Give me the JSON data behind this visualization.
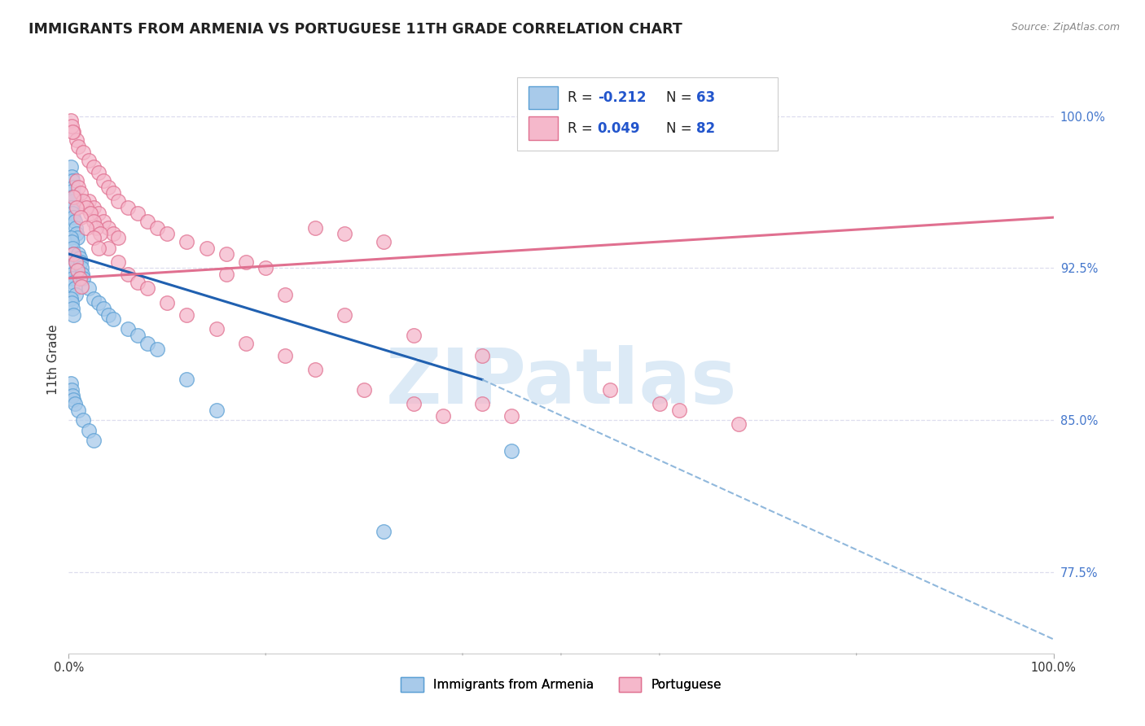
{
  "title": "IMMIGRANTS FROM ARMENIA VS PORTUGUESE 11TH GRADE CORRELATION CHART",
  "source": "Source: ZipAtlas.com",
  "ylabel": "11th Grade",
  "right_ytick_labels": [
    "77.5%",
    "85.0%",
    "92.5%",
    "100.0%"
  ],
  "right_ytick_values": [
    0.775,
    0.85,
    0.925,
    1.0
  ],
  "xlim": [
    0.0,
    1.0
  ],
  "ylim": [
    0.735,
    1.025
  ],
  "color_blue_fill": "#A8CAEA",
  "color_blue_edge": "#5A9FD4",
  "color_blue_line": "#2060B0",
  "color_pink_fill": "#F5B8CB",
  "color_pink_edge": "#E07090",
  "color_pink_line": "#E07090",
  "color_dashed": "#90B8DC",
  "grid_color": "#DDDDEE",
  "background_color": "#FFFFFF",
  "scatter_size": 160,
  "title_fontsize": 12.5,
  "source_fontsize": 9,
  "blue_line": [
    0.0,
    0.932,
    0.42,
    0.87
  ],
  "blue_dashed": [
    0.42,
    0.87,
    1.0,
    0.742
  ],
  "pink_line": [
    0.0,
    0.92,
    1.0,
    0.95
  ],
  "blue_x": [
    0.002,
    0.003,
    0.004,
    0.005,
    0.003,
    0.004,
    0.005,
    0.006,
    0.002,
    0.003,
    0.004,
    0.005,
    0.006,
    0.007,
    0.008,
    0.009,
    0.002,
    0.003,
    0.004,
    0.005,
    0.006,
    0.007,
    0.008,
    0.002,
    0.003,
    0.004,
    0.005,
    0.006,
    0.007,
    0.002,
    0.003,
    0.004,
    0.005,
    0.01,
    0.011,
    0.012,
    0.013,
    0.014,
    0.015,
    0.02,
    0.025,
    0.03,
    0.035,
    0.04,
    0.045,
    0.06,
    0.07,
    0.08,
    0.09,
    0.12,
    0.15,
    0.32,
    0.45,
    0.002,
    0.003,
    0.004,
    0.005,
    0.006,
    0.01,
    0.015,
    0.02,
    0.025
  ],
  "blue_y": [
    0.975,
    0.97,
    0.968,
    0.965,
    0.963,
    0.96,
    0.958,
    0.96,
    0.955,
    0.955,
    0.952,
    0.95,
    0.948,
    0.945,
    0.942,
    0.94,
    0.94,
    0.938,
    0.935,
    0.932,
    0.93,
    0.928,
    0.925,
    0.925,
    0.922,
    0.92,
    0.918,
    0.915,
    0.912,
    0.91,
    0.908,
    0.905,
    0.902,
    0.932,
    0.93,
    0.928,
    0.925,
    0.922,
    0.92,
    0.915,
    0.91,
    0.908,
    0.905,
    0.902,
    0.9,
    0.895,
    0.892,
    0.888,
    0.885,
    0.87,
    0.855,
    0.795,
    0.835,
    0.868,
    0.865,
    0.862,
    0.86,
    0.858,
    0.855,
    0.85,
    0.845,
    0.84
  ],
  "pink_x": [
    0.005,
    0.008,
    0.01,
    0.015,
    0.02,
    0.025,
    0.03,
    0.035,
    0.04,
    0.045,
    0.05,
    0.06,
    0.07,
    0.08,
    0.09,
    0.1,
    0.12,
    0.14,
    0.16,
    0.18,
    0.2,
    0.02,
    0.025,
    0.03,
    0.035,
    0.04,
    0.045,
    0.05,
    0.008,
    0.01,
    0.012,
    0.015,
    0.018,
    0.022,
    0.025,
    0.028,
    0.032,
    0.04,
    0.05,
    0.06,
    0.07,
    0.08,
    0.1,
    0.12,
    0.15,
    0.18,
    0.22,
    0.25,
    0.3,
    0.35,
    0.38,
    0.25,
    0.28,
    0.32,
    0.62,
    0.68,
    0.42,
    0.45,
    0.55,
    0.6,
    0.005,
    0.007,
    0.009,
    0.011,
    0.013,
    0.002,
    0.003,
    0.004,
    0.16,
    0.22,
    0.28,
    0.35,
    0.42,
    0.005,
    0.008,
    0.012,
    0.018,
    0.025,
    0.03
  ],
  "pink_y": [
    0.992,
    0.988,
    0.985,
    0.982,
    0.978,
    0.975,
    0.972,
    0.968,
    0.965,
    0.962,
    0.958,
    0.955,
    0.952,
    0.948,
    0.945,
    0.942,
    0.938,
    0.935,
    0.932,
    0.928,
    0.925,
    0.958,
    0.955,
    0.952,
    0.948,
    0.945,
    0.942,
    0.94,
    0.968,
    0.965,
    0.962,
    0.958,
    0.955,
    0.952,
    0.948,
    0.945,
    0.942,
    0.935,
    0.928,
    0.922,
    0.918,
    0.915,
    0.908,
    0.902,
    0.895,
    0.888,
    0.882,
    0.875,
    0.865,
    0.858,
    0.852,
    0.945,
    0.942,
    0.938,
    0.855,
    0.848,
    0.858,
    0.852,
    0.865,
    0.858,
    0.932,
    0.928,
    0.924,
    0.92,
    0.916,
    0.998,
    0.995,
    0.992,
    0.922,
    0.912,
    0.902,
    0.892,
    0.882,
    0.96,
    0.955,
    0.95,
    0.945,
    0.94,
    0.935
  ]
}
